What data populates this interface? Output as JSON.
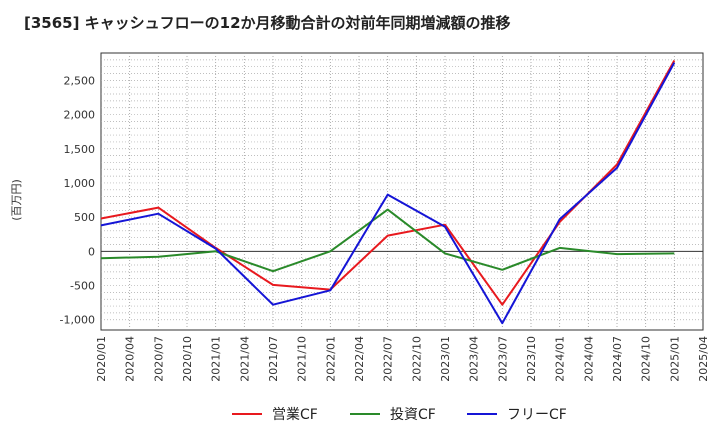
{
  "chart_data": {
    "type": "line",
    "title": "[3565]  キャッシュフローの12か月移動合計の対前年同期増減額の推移",
    "ylabel": "(百万円)",
    "xlabel": "",
    "x": [
      "2020/01",
      "2020/04",
      "2020/07",
      "2020/10",
      "2021/01",
      "2021/04",
      "2021/07",
      "2021/10",
      "2022/01",
      "2022/04",
      "2022/07",
      "2022/10",
      "2023/01",
      "2023/04",
      "2023/07",
      "2023/10",
      "2024/01",
      "2024/04",
      "2024/07",
      "2024/10",
      "2025/01",
      "2025/04"
    ],
    "ylim": [
      -1150,
      2900
    ],
    "yticks": [
      -1000,
      -500,
      0,
      500,
      1000,
      1500,
      2000,
      2500
    ],
    "ytick_labels": [
      "-1,000",
      "-500",
      "0",
      "500",
      "1,000",
      "1,500",
      "2,000",
      "2,500"
    ],
    "grid": true,
    "legend_position": "bottom",
    "series": [
      {
        "name": "営業CF",
        "color": "#e8191e",
        "points": [
          [
            "2020/01",
            480
          ],
          [
            "2020/07",
            640
          ],
          [
            "2021/01",
            50
          ],
          [
            "2021/07",
            -490
          ],
          [
            "2022/01",
            -560
          ],
          [
            "2022/07",
            230
          ],
          [
            "2023/01",
            390
          ],
          [
            "2023/07",
            -780
          ],
          [
            "2024/01",
            430
          ],
          [
            "2024/07",
            1270
          ],
          [
            "2025/01",
            2790
          ]
        ]
      },
      {
        "name": "投資CF",
        "color": "#2a8a2a",
        "points": [
          [
            "2020/01",
            -100
          ],
          [
            "2020/07",
            -80
          ],
          [
            "2021/01",
            0
          ],
          [
            "2021/07",
            -290
          ],
          [
            "2022/01",
            0
          ],
          [
            "2022/07",
            610
          ],
          [
            "2023/01",
            -30
          ],
          [
            "2023/07",
            -270
          ],
          [
            "2024/01",
            50
          ],
          [
            "2024/07",
            -40
          ],
          [
            "2025/01",
            -30
          ]
        ]
      },
      {
        "name": "フリーCF",
        "color": "#1515d6",
        "points": [
          [
            "2020/01",
            380
          ],
          [
            "2020/07",
            550
          ],
          [
            "2021/01",
            40
          ],
          [
            "2021/07",
            -780
          ],
          [
            "2022/01",
            -570
          ],
          [
            "2022/07",
            830
          ],
          [
            "2023/01",
            360
          ],
          [
            "2023/07",
            -1050
          ],
          [
            "2024/01",
            470
          ],
          [
            "2024/07",
            1220
          ],
          [
            "2025/01",
            2760
          ]
        ]
      }
    ]
  }
}
